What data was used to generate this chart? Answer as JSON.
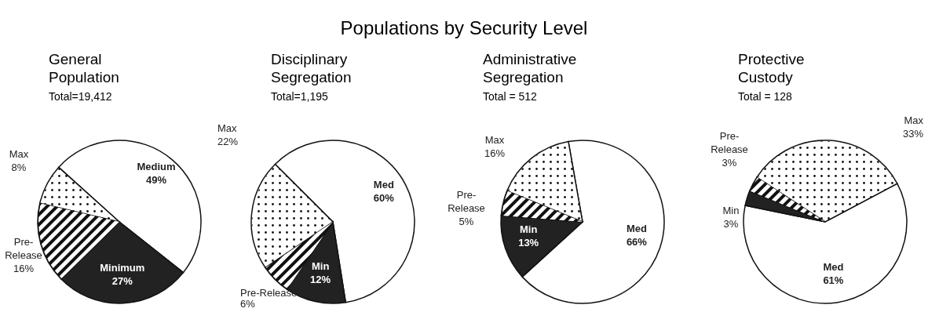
{
  "chart_data": [
    {
      "type": "pie",
      "title": "General Population",
      "subtitle": "Total=19,412",
      "annotations": [
        "Populations by Security Level"
      ],
      "categories": [
        "Medium",
        "Minimum",
        "Pre-Release",
        "Max"
      ],
      "values": [
        49,
        27,
        16,
        8
      ],
      "value_labels": [
        "49%",
        "27%",
        "16%",
        "8%"
      ],
      "colors": [
        "#ffffff",
        "#222222",
        "#111111",
        "#ffffff"
      ]
    },
    {
      "type": "pie",
      "title": "Disciplinary Segregation",
      "subtitle": "Total=1,195",
      "categories": [
        "Med",
        "Min",
        "Pre-Release",
        "Max"
      ],
      "values": [
        60,
        12,
        6,
        22
      ],
      "value_labels": [
        "60%",
        "12%",
        "6%",
        "22%"
      ],
      "colors": [
        "#ffffff",
        "#222222",
        "#111111",
        "#ffffff"
      ]
    },
    {
      "type": "pie",
      "title": "Administrative Segregation",
      "subtitle": "Total = 512",
      "categories": [
        "Med",
        "Min",
        "Pre-Release",
        "Max"
      ],
      "values": [
        66,
        13,
        5,
        16
      ],
      "value_labels": [
        "66%",
        "13%",
        "5%",
        "16%"
      ],
      "colors": [
        "#ffffff",
        "#222222",
        "#111111",
        "#ffffff"
      ]
    },
    {
      "type": "pie",
      "title": "Protective Custody",
      "subtitle": "Total = 128",
      "categories": [
        "Med",
        "Min",
        "Pre-Release",
        "Max"
      ],
      "values": [
        61,
        3,
        3,
        33
      ],
      "value_labels": [
        "61%",
        "3%",
        "3%",
        "33%"
      ],
      "colors": [
        "#ffffff",
        "#222222",
        "#111111",
        "#ffffff"
      ]
    }
  ]
}
